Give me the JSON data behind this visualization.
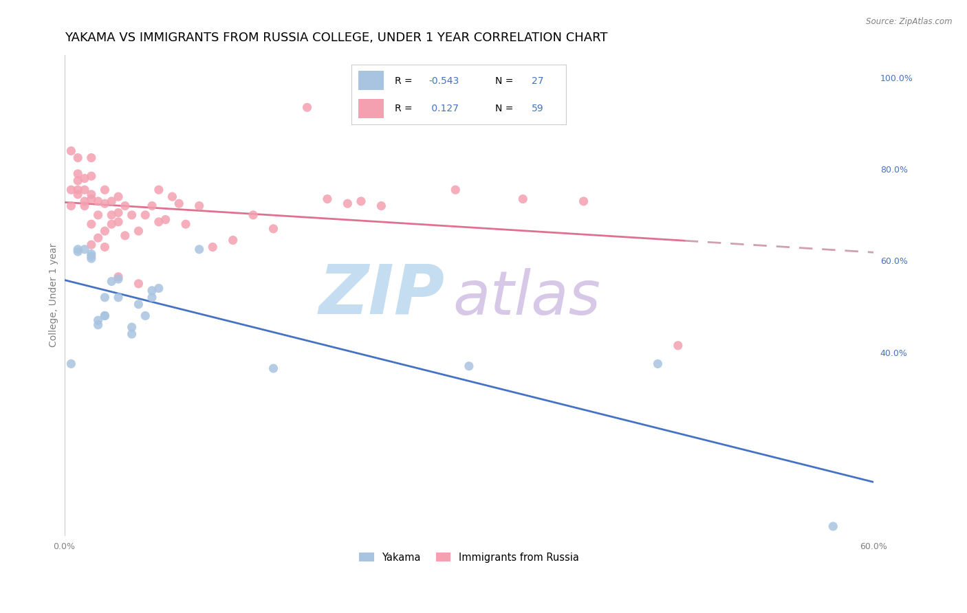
{
  "title": "YAKAMA VS IMMIGRANTS FROM RUSSIA COLLEGE, UNDER 1 YEAR CORRELATION CHART",
  "source": "Source: ZipAtlas.com",
  "ylabel": "College, Under 1 year",
  "x_min": 0.0,
  "x_max": 0.6,
  "y_min": 0.0,
  "y_max": 1.05,
  "yakama_r": -0.543,
  "yakama_n": 27,
  "russia_r": 0.127,
  "russia_n": 59,
  "yakama_color": "#a8c4e0",
  "russia_color": "#f4a0b0",
  "line_yakama_color": "#4472c4",
  "line_russia_solid_color": "#e07090",
  "line_russia_dash_color": "#d0a0b0",
  "watermark_zip": "ZIP",
  "watermark_atlas": "atlas",
  "watermark_color_zip": "#c5ddf0",
  "watermark_color_atlas": "#d8c8e8",
  "yakama_x": [
    0.005,
    0.01,
    0.01,
    0.015,
    0.02,
    0.02,
    0.02,
    0.025,
    0.025,
    0.03,
    0.03,
    0.03,
    0.035,
    0.04,
    0.04,
    0.05,
    0.05,
    0.055,
    0.06,
    0.065,
    0.065,
    0.07,
    0.1,
    0.155,
    0.3,
    0.44,
    0.57
  ],
  "yakama_y": [
    0.375,
    0.62,
    0.625,
    0.625,
    0.605,
    0.61,
    0.615,
    0.46,
    0.47,
    0.48,
    0.48,
    0.52,
    0.555,
    0.56,
    0.52,
    0.44,
    0.455,
    0.505,
    0.48,
    0.52,
    0.535,
    0.54,
    0.625,
    0.365,
    0.37,
    0.375,
    0.02
  ],
  "russia_x": [
    0.005,
    0.005,
    0.005,
    0.01,
    0.01,
    0.01,
    0.01,
    0.01,
    0.015,
    0.015,
    0.015,
    0.015,
    0.02,
    0.02,
    0.02,
    0.02,
    0.02,
    0.02,
    0.025,
    0.025,
    0.025,
    0.03,
    0.03,
    0.03,
    0.03,
    0.035,
    0.035,
    0.035,
    0.04,
    0.04,
    0.04,
    0.04,
    0.045,
    0.045,
    0.05,
    0.055,
    0.055,
    0.06,
    0.065,
    0.07,
    0.07,
    0.075,
    0.08,
    0.085,
    0.09,
    0.1,
    0.11,
    0.125,
    0.14,
    0.155,
    0.18,
    0.195,
    0.21,
    0.22,
    0.235,
    0.29,
    0.34,
    0.385,
    0.455
  ],
  "russia_y": [
    0.72,
    0.755,
    0.84,
    0.745,
    0.755,
    0.775,
    0.79,
    0.825,
    0.72,
    0.73,
    0.755,
    0.78,
    0.635,
    0.68,
    0.735,
    0.745,
    0.785,
    0.825,
    0.65,
    0.7,
    0.73,
    0.63,
    0.665,
    0.725,
    0.755,
    0.68,
    0.7,
    0.73,
    0.565,
    0.685,
    0.705,
    0.74,
    0.655,
    0.72,
    0.7,
    0.55,
    0.665,
    0.7,
    0.72,
    0.685,
    0.755,
    0.69,
    0.74,
    0.725,
    0.68,
    0.72,
    0.63,
    0.645,
    0.7,
    0.67,
    0.935,
    0.735,
    0.725,
    0.73,
    0.72,
    0.755,
    0.735,
    0.73,
    0.415
  ],
  "grid_color": "#e0e0e0",
  "grid_linestyle": "--",
  "background_color": "#ffffff",
  "title_fontsize": 13,
  "axis_label_fontsize": 10,
  "tick_fontsize": 9,
  "right_tick_color": "#4472c4",
  "legend_text_color": "#4472c4"
}
